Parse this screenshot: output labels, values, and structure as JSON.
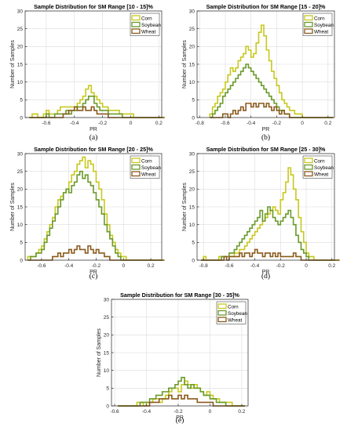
{
  "chart_data": [
    {
      "type": "histogram-step",
      "panel_label": "(a)",
      "title": "Sample Distribution for SM Range [10 - 15]%",
      "xlabel": "PR",
      "ylabel": "Number of Samples",
      "xlim": [
        -0.75,
        0.22
      ],
      "ylim": [
        0,
        30
      ],
      "xticks": [
        -0.6,
        -0.4,
        -0.2,
        0,
        0.2
      ],
      "xticklabels": [
        "-0.6",
        "-0.4",
        "-0.2",
        "0",
        "0.2"
      ],
      "yticks": [
        0,
        5,
        10,
        15,
        20,
        25,
        30
      ],
      "grid": true,
      "legend": "top-right",
      "bin_start": -0.72,
      "bin_width": 0.02,
      "series": [
        {
          "name": "Corn",
          "color": "#c8c81e",
          "values": [
            0,
            1,
            1,
            0,
            0,
            1,
            2,
            1,
            1,
            1,
            2,
            3,
            3,
            3,
            3,
            3,
            3,
            4,
            5,
            6,
            8,
            9,
            7,
            6,
            5,
            4,
            3,
            3,
            2,
            2,
            2,
            2,
            1,
            1,
            1,
            1,
            1,
            0,
            0,
            0,
            0,
            0,
            0,
            0,
            0,
            0,
            0,
            0
          ]
        },
        {
          "name": "Soybean",
          "color": "#6a9a2a",
          "values": [
            0,
            0,
            0,
            0,
            0,
            0,
            1,
            0,
            0,
            1,
            1,
            1,
            1,
            2,
            1,
            2,
            2,
            3,
            3,
            4,
            5,
            6,
            6,
            4,
            3,
            2,
            2,
            2,
            1,
            1,
            1,
            1,
            1,
            0,
            0,
            0,
            0,
            0,
            0,
            0,
            0,
            0,
            0,
            0,
            0,
            0,
            0,
            0
          ]
        },
        {
          "name": "Wheat",
          "color": "#8a5a1c",
          "values": [
            0,
            0,
            0,
            0,
            0,
            0,
            0,
            0,
            0,
            0,
            0,
            0,
            1,
            1,
            2,
            2,
            3,
            2,
            2,
            3,
            2,
            2,
            3,
            2,
            1,
            1,
            1,
            1,
            0,
            0,
            0,
            0,
            0,
            0,
            0,
            0,
            0,
            0,
            0,
            0,
            0,
            0,
            0,
            0,
            0,
            0,
            0,
            0
          ]
        }
      ]
    },
    {
      "type": "histogram-step",
      "panel_label": "(b)",
      "title": "Sample Distribution for SM Range [15 - 20]%",
      "xlabel": "PR",
      "ylabel": "Number of Samples",
      "xlim": [
        -0.82,
        0.25
      ],
      "ylim": [
        0,
        30
      ],
      "xticks": [
        -0.8,
        -0.6,
        -0.4,
        -0.2,
        0,
        0.2
      ],
      "xticklabels": [
        "-0.8",
        "-0.6",
        "-0.4",
        "-0.2",
        "0",
        "0.2"
      ],
      "yticks": [
        0,
        5,
        10,
        15,
        20,
        25,
        30
      ],
      "grid": true,
      "legend": "top-right",
      "bin_start": -0.72,
      "bin_width": 0.02,
      "series": [
        {
          "name": "Corn",
          "color": "#c8c81e",
          "values": [
            1,
            3,
            4,
            6,
            7,
            8,
            10,
            12,
            14,
            13,
            14,
            16,
            17,
            18,
            20,
            19,
            17,
            18,
            21,
            24,
            26,
            23,
            19,
            16,
            13,
            11,
            9,
            7,
            5,
            4,
            3,
            2,
            2,
            1,
            1,
            1,
            0,
            0,
            0,
            0,
            0,
            0,
            0,
            0,
            0,
            0,
            0,
            0
          ]
        },
        {
          "name": "Soybean",
          "color": "#6a9a2a",
          "values": [
            0,
            1,
            2,
            3,
            4,
            6,
            7,
            8,
            9,
            10,
            11,
            12,
            13,
            14,
            15,
            14,
            13,
            12,
            11,
            10,
            9,
            8,
            7,
            6,
            5,
            4,
            3,
            2,
            2,
            1,
            1,
            0,
            0,
            0,
            0,
            0,
            0,
            0,
            0,
            0,
            0,
            0,
            0,
            0,
            0,
            0,
            0,
            0
          ]
        },
        {
          "name": "Wheat",
          "color": "#8a5a1c",
          "values": [
            0,
            0,
            0,
            0,
            0,
            1,
            1,
            0,
            1,
            2,
            1,
            2,
            3,
            2,
            4,
            4,
            3,
            4,
            3,
            4,
            4,
            3,
            4,
            3,
            2,
            3,
            2,
            1,
            2,
            1,
            1,
            0,
            0,
            0,
            0,
            0,
            0,
            0,
            0,
            0,
            0,
            0,
            0,
            0,
            0,
            0,
            0,
            0
          ]
        }
      ]
    },
    {
      "type": "histogram-step",
      "panel_label": "(c)",
      "title": "Sample Distribution for SM Range [20 - 25]%",
      "xlabel": "PR",
      "ylabel": "Number of Samples",
      "xlim": [
        -0.72,
        0.28
      ],
      "ylim": [
        0,
        30
      ],
      "xticks": [
        -0.6,
        -0.4,
        -0.2,
        0,
        0.2
      ],
      "xticklabels": [
        "-0.6",
        "-0.4",
        "-0.2",
        "0",
        "0.2"
      ],
      "yticks": [
        0,
        5,
        10,
        15,
        20,
        25,
        30
      ],
      "grid": true,
      "legend": "top-right",
      "bin_start": -0.7,
      "bin_width": 0.02,
      "series": [
        {
          "name": "Corn",
          "color": "#c8c81e",
          "values": [
            1,
            1,
            1,
            2,
            3,
            4,
            6,
            8,
            10,
            12,
            15,
            17,
            18,
            19,
            20,
            22,
            24,
            25,
            27,
            28,
            29,
            26,
            28,
            27,
            25,
            22,
            20,
            17,
            13,
            10,
            7,
            5,
            3,
            2,
            1,
            1,
            0,
            0,
            0,
            0,
            0,
            0,
            0,
            0,
            0,
            0,
            0,
            0,
            0,
            0
          ]
        },
        {
          "name": "Soybean",
          "color": "#6a9a2a",
          "values": [
            0,
            1,
            1,
            2,
            2,
            3,
            5,
            7,
            9,
            11,
            13,
            15,
            17,
            19,
            20,
            19,
            21,
            22,
            24,
            25,
            23,
            24,
            22,
            21,
            19,
            17,
            15,
            13,
            10,
            8,
            6,
            4,
            2,
            1,
            0,
            0,
            0,
            0,
            0,
            0,
            0,
            0,
            0,
            0,
            0,
            0,
            0,
            0,
            0,
            0
          ]
        },
        {
          "name": "Wheat",
          "color": "#8a5a1c",
          "values": [
            0,
            0,
            0,
            0,
            0,
            0,
            0,
            0,
            0,
            1,
            1,
            2,
            1,
            2,
            2,
            3,
            2,
            3,
            4,
            3,
            3,
            2,
            4,
            3,
            2,
            3,
            2,
            2,
            1,
            1,
            0,
            0,
            0,
            0,
            0,
            0,
            0,
            0,
            0,
            0,
            0,
            0,
            0,
            0,
            0,
            0,
            0,
            0,
            0,
            0
          ]
        }
      ]
    },
    {
      "type": "histogram-step",
      "panel_label": "(d)",
      "title": "Sample Distribution for SM Range [25 - 30]%",
      "xlabel": "PR",
      "ylabel": "Number of Samples",
      "xlim": [
        -0.85,
        0.22
      ],
      "ylim": [
        0,
        30
      ],
      "xticks": [
        -0.8,
        -0.6,
        -0.4,
        -0.2,
        0,
        0.2
      ],
      "xticklabels": [
        "-0.8",
        "-0.6",
        "-0.4",
        "-0.2",
        "0",
        "0.2"
      ],
      "yticks": [
        0,
        5,
        10,
        15,
        20,
        25,
        30
      ],
      "grid": true,
      "legend": "top-right",
      "bin_start": -0.82,
      "bin_width": 0.02,
      "series": [
        {
          "name": "Corn",
          "color": "#c8c81e",
          "values": [
            0,
            1,
            0,
            0,
            0,
            0,
            0,
            1,
            1,
            1,
            1,
            1,
            1,
            2,
            2,
            3,
            3,
            4,
            5,
            6,
            7,
            8,
            9,
            10,
            11,
            12,
            13,
            14,
            15,
            14,
            13,
            17,
            19,
            22,
            26,
            24,
            20,
            17,
            12,
            8,
            5,
            2,
            1,
            1,
            0,
            0,
            0,
            0,
            0,
            0,
            0,
            0,
            0,
            0
          ]
        },
        {
          "name": "Soybean",
          "color": "#6a9a2a",
          "values": [
            0,
            0,
            0,
            0,
            0,
            0,
            0,
            0,
            1,
            1,
            1,
            2,
            2,
            3,
            4,
            5,
            6,
            7,
            8,
            9,
            10,
            11,
            12,
            14,
            11,
            13,
            15,
            14,
            12,
            11,
            10,
            11,
            12,
            13,
            14,
            12,
            10,
            7,
            5,
            3,
            2,
            1,
            0,
            0,
            0,
            0,
            0,
            0,
            0,
            0,
            0,
            0,
            0,
            0
          ]
        },
        {
          "name": "Wheat",
          "color": "#8a5a1c",
          "values": [
            0,
            0,
            0,
            0,
            0,
            0,
            0,
            0,
            0,
            1,
            0,
            1,
            1,
            1,
            1,
            2,
            1,
            2,
            2,
            1,
            2,
            3,
            2,
            2,
            1,
            2,
            2,
            1,
            2,
            1,
            2,
            1,
            1,
            1,
            1,
            1,
            2,
            1,
            1,
            0,
            0,
            0,
            0,
            0,
            0,
            0,
            0,
            0,
            0,
            0,
            0,
            0,
            0,
            0
          ]
        }
      ]
    },
    {
      "type": "histogram-step",
      "panel_label": "(e)",
      "title": "Sample Distribution for SM Range [30 - 35]%",
      "xlabel": "PR",
      "ylabel": "Number of Samples",
      "xlim": [
        -0.62,
        0.24
      ],
      "ylim": [
        0,
        30
      ],
      "xticks": [
        -0.6,
        -0.4,
        -0.2,
        0,
        0.2
      ],
      "xticklabels": [
        "-0.6",
        "-0.4",
        "-0.2",
        "0",
        "0.2"
      ],
      "yticks": [
        0,
        5,
        10,
        15,
        20,
        25,
        30
      ],
      "grid": true,
      "legend": "top-right",
      "bin_start": -0.58,
      "bin_width": 0.02,
      "series": [
        {
          "name": "Corn",
          "color": "#c8c81e",
          "values": [
            0,
            0,
            0,
            0,
            0,
            0,
            1,
            1,
            0,
            1,
            1,
            2,
            2,
            1,
            2,
            3,
            4,
            5,
            5,
            4,
            6,
            7,
            6,
            5,
            6,
            5,
            4,
            3,
            4,
            3,
            2,
            2,
            1,
            1,
            1,
            1,
            0,
            0,
            0,
            0
          ]
        },
        {
          "name": "Soybean",
          "color": "#6a9a2a",
          "values": [
            0,
            0,
            0,
            0,
            0,
            0,
            0,
            1,
            1,
            1,
            2,
            2,
            3,
            3,
            4,
            4,
            5,
            5,
            6,
            7,
            8,
            6,
            5,
            6,
            5,
            5,
            4,
            3,
            3,
            2,
            2,
            1,
            1,
            1,
            0,
            0,
            0,
            0,
            0,
            0
          ]
        },
        {
          "name": "Wheat",
          "color": "#8a5a1c",
          "values": [
            0,
            0,
            0,
            0,
            0,
            0,
            0,
            0,
            0,
            0,
            1,
            1,
            1,
            2,
            2,
            2,
            3,
            2,
            2,
            3,
            2,
            3,
            2,
            2,
            2,
            1,
            1,
            1,
            1,
            1,
            0,
            0,
            0,
            0,
            0,
            0,
            0,
            0,
            0,
            0
          ]
        }
      ]
    }
  ]
}
